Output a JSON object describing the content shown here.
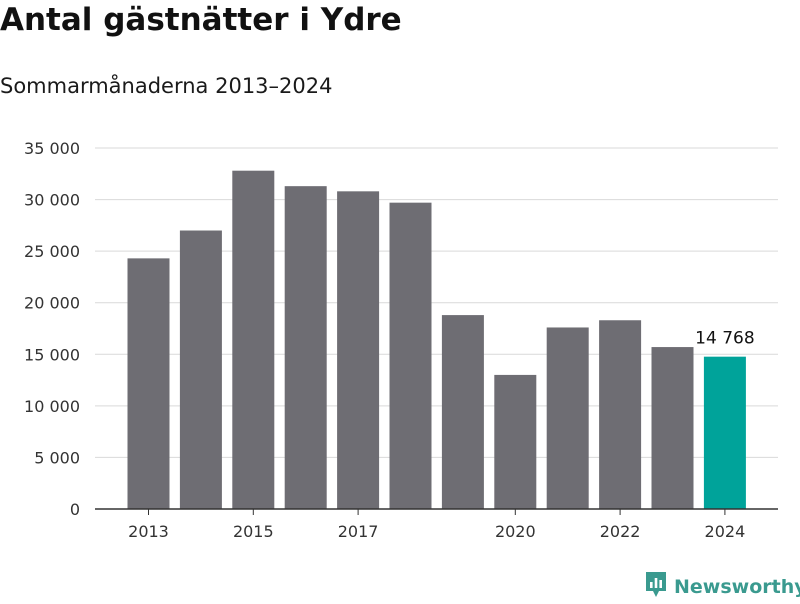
{
  "header": {
    "title": "Antal gästnätter i Ydre",
    "subtitle": "Sommarmånaderna 2013–2024"
  },
  "brand": {
    "name": "Newsworthy",
    "icon": "newsworthy-logo-icon"
  },
  "colors": {
    "bar": "#6e6d73",
    "highlight": "#00a39a",
    "grid": "#d9d9d9",
    "axis": "#333333",
    "brand": "#3a9a8f"
  },
  "chart_data": {
    "type": "bar",
    "title": "Antal gästnätter i Ydre",
    "subtitle": "Sommarmånaderna 2013–2024",
    "categories": [
      "2013",
      "2014",
      "2015",
      "2016",
      "2017",
      "2018",
      "2019",
      "2020",
      "2021",
      "2022",
      "2023",
      "2024"
    ],
    "values": [
      24300,
      27000,
      32800,
      31300,
      30800,
      29700,
      18800,
      13000,
      17600,
      18300,
      15700,
      14768
    ],
    "highlight_index": 11,
    "data_labels": [
      {
        "category": "2024",
        "text": "14 768"
      }
    ],
    "x_tick_labels": [
      "2013",
      "2015",
      "2017",
      "2020",
      "2022",
      "2024"
    ],
    "y_ticks": [
      0,
      5000,
      10000,
      15000,
      20000,
      25000,
      30000,
      35000
    ],
    "y_tick_labels": [
      "0",
      "5 000",
      "10 000",
      "15 000",
      "20 000",
      "25 000",
      "30 000",
      "35 000"
    ],
    "ylim": [
      0,
      35000
    ],
    "xlabel": "",
    "ylabel": "",
    "grid": true,
    "legend": "none"
  }
}
